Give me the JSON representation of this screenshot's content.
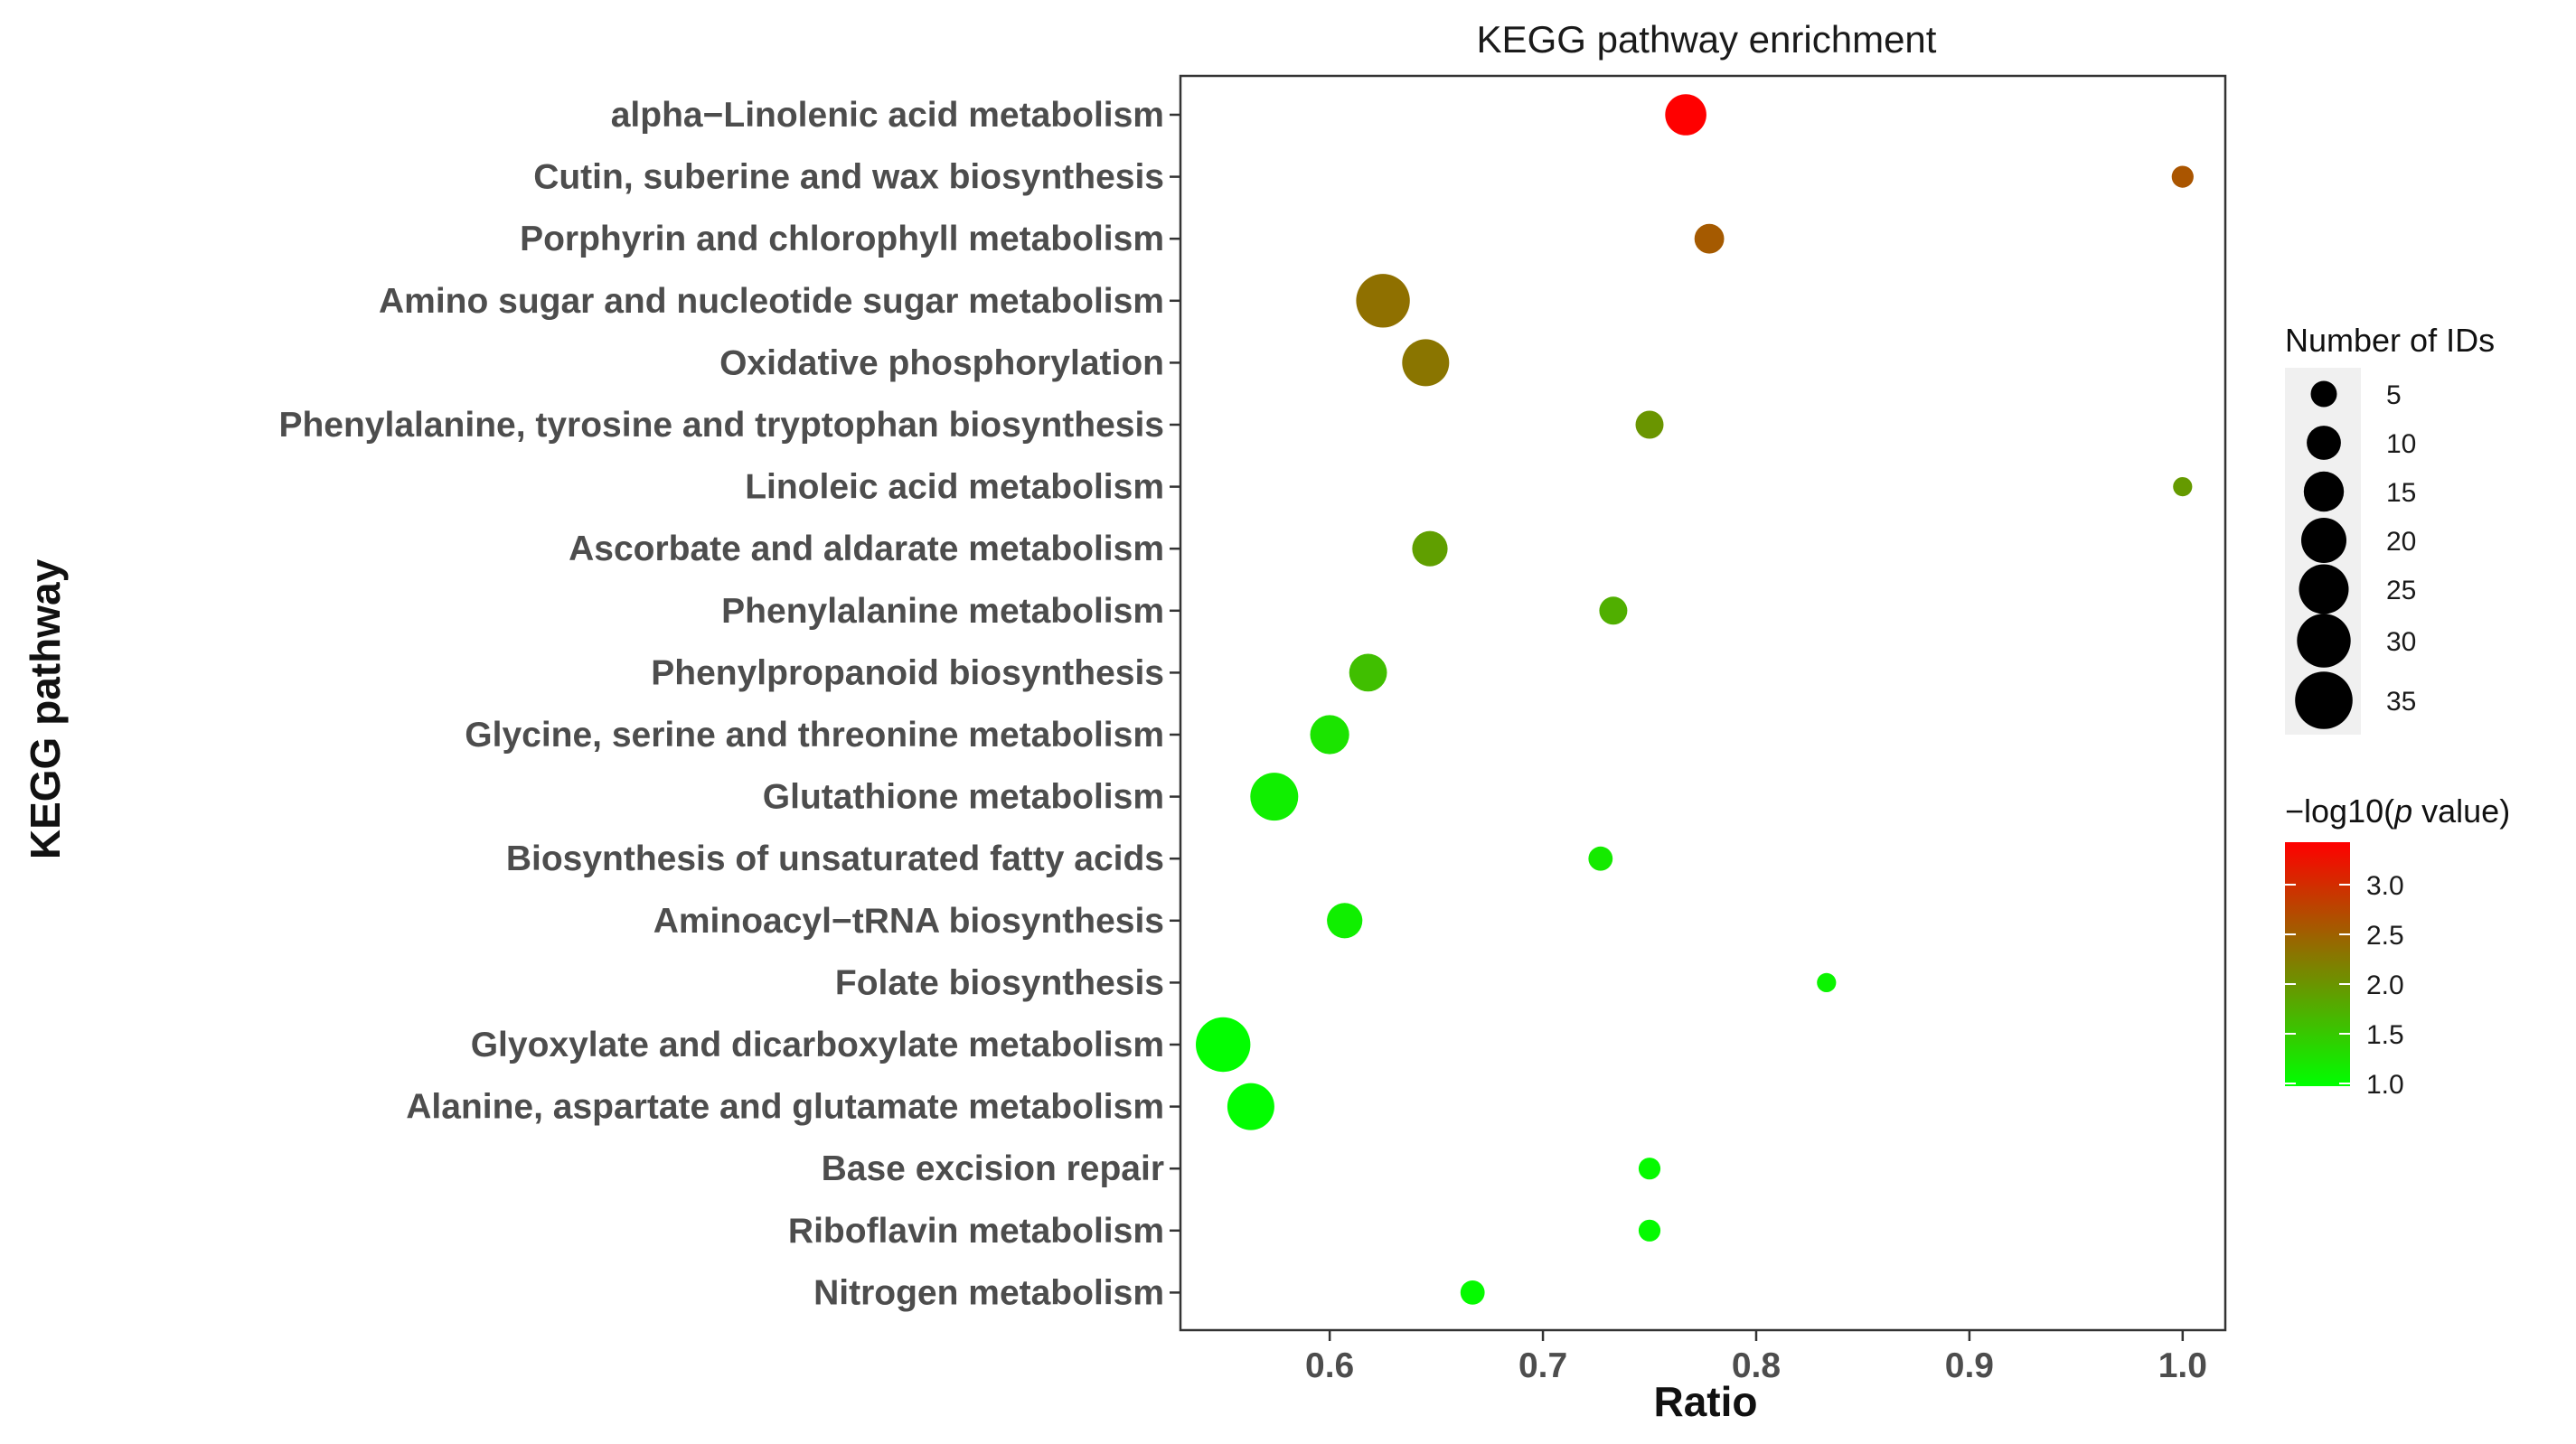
{
  "chart_data": {
    "type": "scatter",
    "title": "KEGG pathway enrichment",
    "xlabel": "Ratio",
    "ylabel": "KEGG pathway",
    "xlim": [
      0.53,
      1.02
    ],
    "xticks": [
      "0.6",
      "0.7",
      "0.8",
      "0.9",
      "1.0"
    ],
    "xtick_values": [
      0.6,
      0.7,
      0.8,
      0.9,
      1.0
    ],
    "grid": false,
    "points": [
      {
        "pathway": "alpha−Linolenic acid metabolism",
        "ratio": 0.767,
        "count": 16,
        "neglog10p": 3.4
      },
      {
        "pathway": "Cutin, suberine and wax biosynthesis",
        "ratio": 1.0,
        "count": 3,
        "neglog10p": 2.6
      },
      {
        "pathway": "Porphyrin and chlorophyll metabolism",
        "ratio": 0.778,
        "count": 7,
        "neglog10p": 2.55
      },
      {
        "pathway": "Amino sugar and nucleotide sugar metabolism",
        "ratio": 0.625,
        "count": 30,
        "neglog10p": 2.35
      },
      {
        "pathway": "Oxidative phosphorylation",
        "ratio": 0.645,
        "count": 22,
        "neglog10p": 2.3
      },
      {
        "pathway": "Phenylalanine, tyrosine and tryptophan biosynthesis",
        "ratio": 0.75,
        "count": 6,
        "neglog10p": 2.0
      },
      {
        "pathway": "Linoleic acid metabolism",
        "ratio": 1.0,
        "count": 2,
        "neglog10p": 1.95
      },
      {
        "pathway": "Ascorbate and aldarate metabolism",
        "ratio": 0.647,
        "count": 11,
        "neglog10p": 1.9
      },
      {
        "pathway": "Phenylalanine metabolism",
        "ratio": 0.733,
        "count": 6,
        "neglog10p": 1.75
      },
      {
        "pathway": "Phenylpropanoid biosynthesis",
        "ratio": 0.618,
        "count": 13,
        "neglog10p": 1.6
      },
      {
        "pathway": "Glycine, serine and threonine metabolism",
        "ratio": 0.6,
        "count": 14,
        "neglog10p": 1.25
      },
      {
        "pathway": "Glutathione metabolism",
        "ratio": 0.574,
        "count": 23,
        "neglog10p": 1.15
      },
      {
        "pathway": "Biosynthesis of unsaturated fatty acids",
        "ratio": 0.727,
        "count": 4,
        "neglog10p": 1.2
      },
      {
        "pathway": "Aminoacyl−tRNA biosynthesis",
        "ratio": 0.607,
        "count": 11,
        "neglog10p": 1.15
      },
      {
        "pathway": "Folate biosynthesis",
        "ratio": 0.833,
        "count": 2,
        "neglog10p": 1.1
      },
      {
        "pathway": "Glyoxylate and dicarboxylate metabolism",
        "ratio": 0.55,
        "count": 31,
        "neglog10p": 1.02
      },
      {
        "pathway": "Alanine, aspartate and glutamate metabolism",
        "ratio": 0.563,
        "count": 22,
        "neglog10p": 1.02
      },
      {
        "pathway": "Base excision repair",
        "ratio": 0.75,
        "count": 3,
        "neglog10p": 1.05
      },
      {
        "pathway": "Riboflavin metabolism",
        "ratio": 0.75,
        "count": 3,
        "neglog10p": 1.05
      },
      {
        "pathway": "Nitrogen metabolism",
        "ratio": 0.667,
        "count": 4,
        "neglog10p": 1.05
      }
    ],
    "legend_size": {
      "title": "Number of IDs",
      "values": [
        5,
        10,
        15,
        20,
        25,
        30,
        35
      ],
      "labels": [
        "5",
        "10",
        "15",
        "20",
        "25",
        "30",
        "35"
      ]
    },
    "legend_color": {
      "title_prefix": "−log10(",
      "title_italic": "p",
      "title_suffix": " value)",
      "range": [
        1.0,
        3.4
      ],
      "ticks": [
        3.0,
        2.5,
        2.0,
        1.5,
        1.0
      ],
      "tick_labels": [
        "3.0",
        "2.5",
        "2.0",
        "1.5",
        "1.0"
      ],
      "colors": [
        "#00ff00",
        "#ff0000"
      ]
    }
  }
}
